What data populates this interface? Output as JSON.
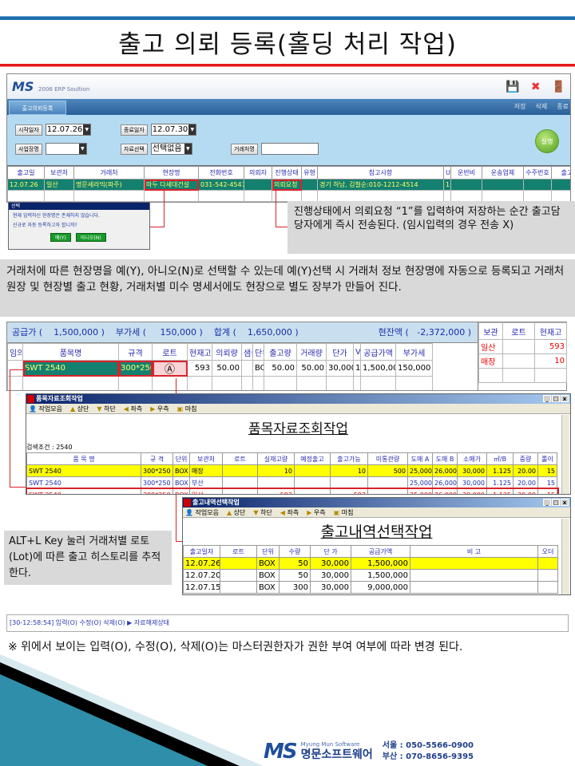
{
  "slide": {
    "title": "출고 의뢰 등록(홀딩 처리 작업)"
  },
  "erp": {
    "logo": "MS",
    "logo_sub": "2006 ERP Soultion",
    "tab": "출고의뢰등록",
    "actions": [
      "저장",
      "삭제",
      "종료"
    ],
    "filters": {
      "start_label": "시작일자",
      "start_value": "12.07.26",
      "end_label": "종료일자",
      "end_value": "12.07.30",
      "site_label": "사업장명",
      "site_value": "",
      "data_label": "자료선택",
      "data_value": "선택없음",
      "client_label": "거래처명",
      "client_value": ""
    },
    "run_label": "실행",
    "columns": [
      "출고일",
      "보관처",
      "거래처",
      "현장명",
      "전화번호",
      "의뢰자",
      "진행상태",
      "유형",
      "참고사항",
      "U",
      "운반비",
      "운송업체",
      "수주번호",
      "출고"
    ],
    "rows": [
      [
        "12.07.26",
        "일산",
        "명문세라믹(파주)",
        "마두 다세대건설",
        "031-542-4547",
        "",
        "의뢰요청",
        "",
        "경기 하남, 김철순:010-1212-4514",
        "1",
        "",
        "",
        "",
        ""
      ]
    ]
  },
  "dialog": {
    "title": "선택",
    "line1": "현재 입력하신 현장명은 존재하지 않습니다.",
    "line2": "신규로 자동 등록하고자 합니까?",
    "yes": "예(Y)",
    "no": "아니오(N)"
  },
  "callout": "진행상태에서 의뢰요청 “1”를 입력하여 저장하는 순간 출고담당자에게 즉시 전송된다. (임시입력의 경우 전송 X)",
  "paragraph": "거래처에 따른 현장명을 예(Y), 아니오(N)로 선택할 수 있는데 예(Y)선택 시 거래처 정보 현장명에 자동으로 등록되고 거래처원장 및 현장별 출고 현황, 거래처별 미수 명세서에도 현장으로 별도 장부가 만들어 진다.",
  "order": {
    "summary": {
      "supply": "공급가 (    1,500,000 )",
      "vat": "부가세 (     150,000 )",
      "total": "합계 (    1,650,000 )",
      "balance": "현잔액 (   -2,372,000 )"
    },
    "columns": [
      "임의",
      "품목명",
      "규격",
      "로트",
      "현재고",
      "의뢰량",
      "샘플",
      "단위",
      "출고량",
      "거래량",
      "단가",
      "V",
      "공급가액",
      "부가세"
    ],
    "rows": [
      [
        "",
        "SWT 2540",
        "300*250",
        "Ⓐ",
        "593",
        "50.00",
        "",
        "BOX",
        "50.00",
        "50.00",
        "30,000",
        "1",
        "1,500,000",
        "150,000"
      ]
    ],
    "side_columns": [
      "보관",
      "로트",
      "현재고"
    ],
    "side_rows": [
      [
        "일산",
        "",
        "593"
      ],
      [
        "매장",
        "",
        "10"
      ]
    ]
  },
  "item_window": {
    "title": "품목자료조회작업",
    "toolbar": [
      "작업모음",
      "상단",
      "하단",
      "좌측",
      "우측",
      "마침"
    ],
    "heading": "품목자료조회작업",
    "search": "검색조건 : 2540",
    "columns": [
      "품   목   명",
      "규  격",
      "단위",
      "보관처",
      "로트",
      "실재고량",
      "예정출고",
      "출고가능",
      "미통관량",
      "도매 A",
      "도매 B",
      "소매가",
      "㎡/B",
      "중량",
      "롤이"
    ],
    "rows": [
      [
        "SWT 2540",
        "300*250",
        "BOX",
        "매장",
        "",
        "10",
        "",
        "10",
        "500",
        "25,000",
        "26,000",
        "30,000",
        "1.125",
        "20.00",
        "15"
      ],
      [
        "SWT 2540",
        "300*250",
        "BOX",
        "부산",
        "",
        "",
        "",
        "",
        "",
        "25,000",
        "26,000",
        "30,000",
        "1.125",
        "20.00",
        "15"
      ],
      [
        "SWT 2540",
        "300*250",
        "BOX",
        "일산",
        "",
        "593",
        "",
        "593",
        "",
        "25,000",
        "26,000",
        "30,000",
        "1.125",
        "20.00",
        "15"
      ]
    ]
  },
  "history_window": {
    "title": "출고내역선택작업",
    "toolbar": [
      "작업모음",
      "상단",
      "하단",
      "좌측",
      "우측",
      "마침"
    ],
    "heading": "출고내역선택작업",
    "columns": [
      "출고일자",
      "로트",
      "단위",
      "수량",
      "단 가",
      "공급가액",
      "비                고",
      "오더"
    ],
    "rows": [
      [
        "12.07.26",
        "",
        "BOX",
        "50",
        "30,000",
        "1,500,000",
        "",
        ""
      ],
      [
        "12.07.20",
        "",
        "BOX",
        "50",
        "30,000",
        "1,500,000",
        "",
        ""
      ],
      [
        "12.07.15",
        "",
        "BOX",
        "300",
        "30,000",
        "9,000,000",
        "",
        ""
      ]
    ]
  },
  "alt_note": "ALT+L Key 눌러 거래처별 로토(Lot)에 따른 출고 히스토리를 추적한다.",
  "status_bar": "[30-12:58:54] 입력(O) 수정(O) 삭제(O) ▶ 자료해제상태",
  "footnote": "※  위에서 보이는 입력(O), 수정(O), 삭제(O)는 마스터권한자가 권한 부여 여부에 따라 변경 된다.",
  "footer": {
    "logo": "MS",
    "company_en": "Myung Mun Software",
    "company_ko": "명문소프트웨어",
    "seoul": "서울 : 050-5566-0900",
    "busan": "부산 : 070-8656-9395"
  },
  "colors": {
    "accent_blue": "#1f6fae",
    "accent_red": "#e01818",
    "selected_row": "#14806f",
    "highlight": "#ffff00"
  }
}
